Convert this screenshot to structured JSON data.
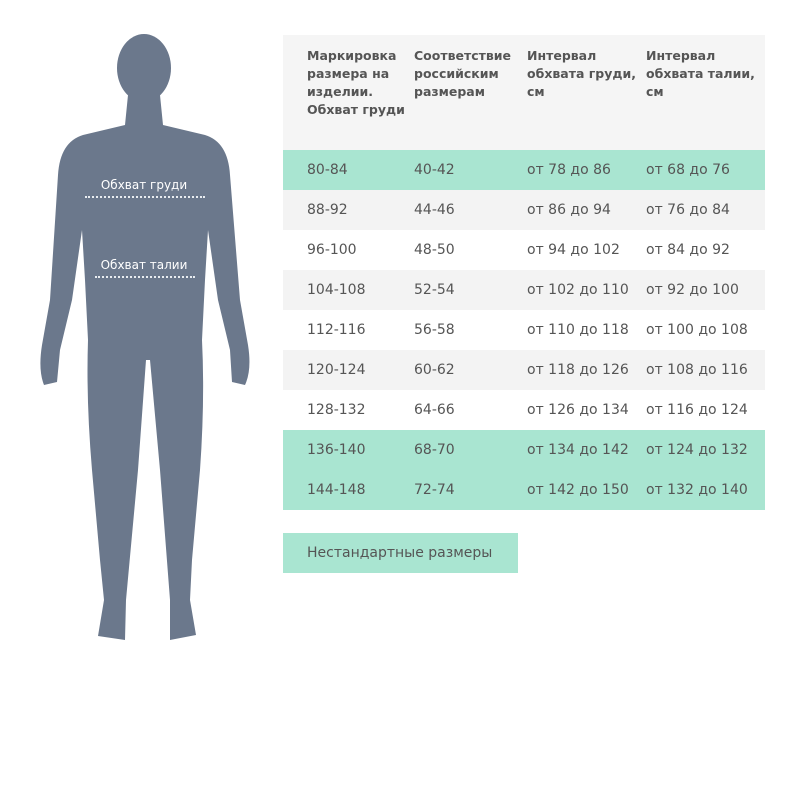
{
  "figure": {
    "color": "#6b788c",
    "chest_label": "Обхват груди",
    "waist_label": "Обхват талии"
  },
  "table": {
    "headers": [
      "Маркировка размера на изделии. Обхват груди",
      "Соответствие российским размерам",
      "Интервал обхвата груди, см",
      "Интервал обхвата талии, см"
    ],
    "rows": [
      {
        "style": "green",
        "cells": [
          "80-84",
          "40-42",
          "от 78 до 86",
          "от 68 до 76"
        ]
      },
      {
        "style": "gray",
        "cells": [
          "88-92",
          "44-46",
          "от 86 до 94",
          "от 76 до 84"
        ]
      },
      {
        "style": "white",
        "cells": [
          "96-100",
          "48-50",
          "от 94 до 102",
          "от 84 до 92"
        ]
      },
      {
        "style": "gray",
        "cells": [
          "104-108",
          "52-54",
          "от 102 до 110",
          "от 92 до 100"
        ]
      },
      {
        "style": "white",
        "cells": [
          "112-116",
          "56-58",
          "от 110 до 118",
          "от 100 до 108"
        ]
      },
      {
        "style": "gray",
        "cells": [
          "120-124",
          "60-62",
          "от 118 до 126",
          "от 108 до 116"
        ]
      },
      {
        "style": "white",
        "cells": [
          "128-132",
          "64-66",
          "от 126 до 134",
          "от 116 до 124"
        ]
      },
      {
        "style": "green",
        "cells": [
          "136-140",
          "68-70",
          "от 134 до 142",
          "от 124 до 132"
        ]
      },
      {
        "style": "green",
        "cells": [
          "144-148",
          "72-74",
          "от 142 до 150",
          "от 132 до 140"
        ]
      }
    ],
    "accent": "#a9e5d1"
  },
  "nonstandard_label": "Нестандартные размеры"
}
